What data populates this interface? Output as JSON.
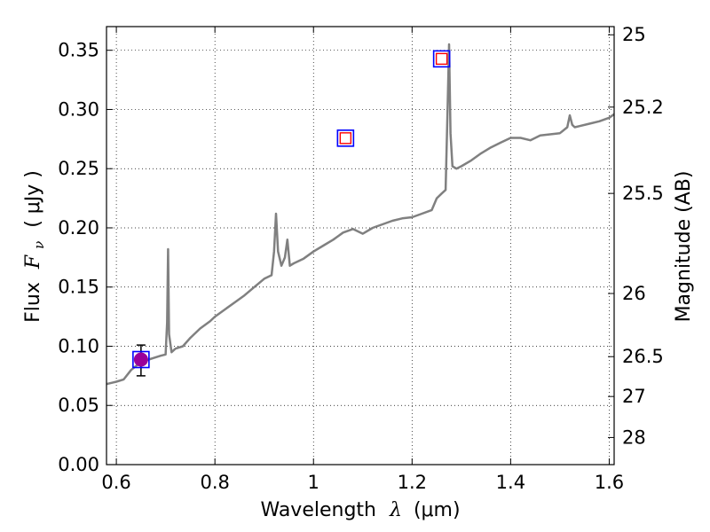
{
  "chart_data": {
    "type": "line",
    "x_axis": {
      "label_prefix": "Wavelength",
      "label_symbol": "λ",
      "label_units": "(μm)",
      "range": [
        0.58,
        1.61
      ],
      "ticks": [
        0.6,
        0.8,
        1.0,
        1.2,
        1.4,
        1.6
      ],
      "tick_labels": [
        "0.6",
        "0.8",
        "1",
        "1.2",
        "1.4",
        "1.6"
      ]
    },
    "y_axis": {
      "label_prefix": "Flux",
      "label_symbol": "F",
      "label_subscript": "ν",
      "label_units": "( μJy )",
      "range": [
        0.0,
        0.37
      ],
      "ticks": [
        0.0,
        0.05,
        0.1,
        0.15,
        0.2,
        0.25,
        0.3,
        0.35
      ],
      "tick_labels": [
        "0.00",
        "0.05",
        "0.10",
        "0.15",
        "0.20",
        "0.25",
        "0.30",
        "0.35"
      ]
    },
    "y2_axis": {
      "label": "Magnitude (AB)",
      "ticks": [
        25,
        25.2,
        25.5,
        26,
        26.5,
        27,
        28
      ],
      "tick_labels": [
        "25",
        "25.2",
        "25.5",
        "26",
        "26.5",
        "27",
        "28"
      ]
    },
    "grid": true,
    "series": [
      {
        "kind": "spectrum",
        "color": "#808080",
        "x": [
          0.58,
          0.6,
          0.615,
          0.63,
          0.645,
          0.66,
          0.675,
          0.69,
          0.7,
          0.703,
          0.705,
          0.707,
          0.712,
          0.72,
          0.735,
          0.75,
          0.77,
          0.79,
          0.8,
          0.82,
          0.84,
          0.86,
          0.88,
          0.9,
          0.915,
          0.92,
          0.924,
          0.928,
          0.935,
          0.942,
          0.947,
          0.952,
          0.96,
          0.98,
          1.0,
          1.02,
          1.04,
          1.06,
          1.08,
          1.1,
          1.12,
          1.14,
          1.16,
          1.18,
          1.2,
          1.22,
          1.24,
          1.25,
          1.26,
          1.268,
          1.272,
          1.275,
          1.278,
          1.282,
          1.29,
          1.3,
          1.32,
          1.34,
          1.36,
          1.38,
          1.4,
          1.42,
          1.44,
          1.46,
          1.48,
          1.5,
          1.515,
          1.52,
          1.525,
          1.53,
          1.54,
          1.56,
          1.58,
          1.6,
          1.61
        ],
        "y": [
          0.068,
          0.07,
          0.072,
          0.08,
          0.085,
          0.088,
          0.09,
          0.092,
          0.093,
          0.12,
          0.182,
          0.11,
          0.095,
          0.098,
          0.1,
          0.107,
          0.115,
          0.121,
          0.125,
          0.131,
          0.137,
          0.143,
          0.15,
          0.157,
          0.16,
          0.18,
          0.212,
          0.18,
          0.168,
          0.175,
          0.19,
          0.168,
          0.17,
          0.174,
          0.18,
          0.185,
          0.19,
          0.196,
          0.199,
          0.195,
          0.2,
          0.203,
          0.206,
          0.208,
          0.209,
          0.212,
          0.215,
          0.225,
          0.229,
          0.232,
          0.3,
          0.355,
          0.28,
          0.252,
          0.25,
          0.252,
          0.257,
          0.263,
          0.268,
          0.272,
          0.276,
          0.276,
          0.274,
          0.278,
          0.279,
          0.28,
          0.285,
          0.295,
          0.287,
          0.285,
          0.286,
          0.288,
          0.29,
          0.293,
          0.296
        ]
      },
      {
        "kind": "photometry",
        "x": [
          0.65,
          1.065,
          1.26
        ],
        "y": [
          0.088,
          0.275,
          0.342
        ],
        "open_square_color": "#0000ff",
        "model_square_color": "#ff0000",
        "filled_point_color": "#9a009a",
        "error_bar": {
          "x": 0.65,
          "y": 0.088,
          "err": 0.013
        }
      }
    ]
  }
}
